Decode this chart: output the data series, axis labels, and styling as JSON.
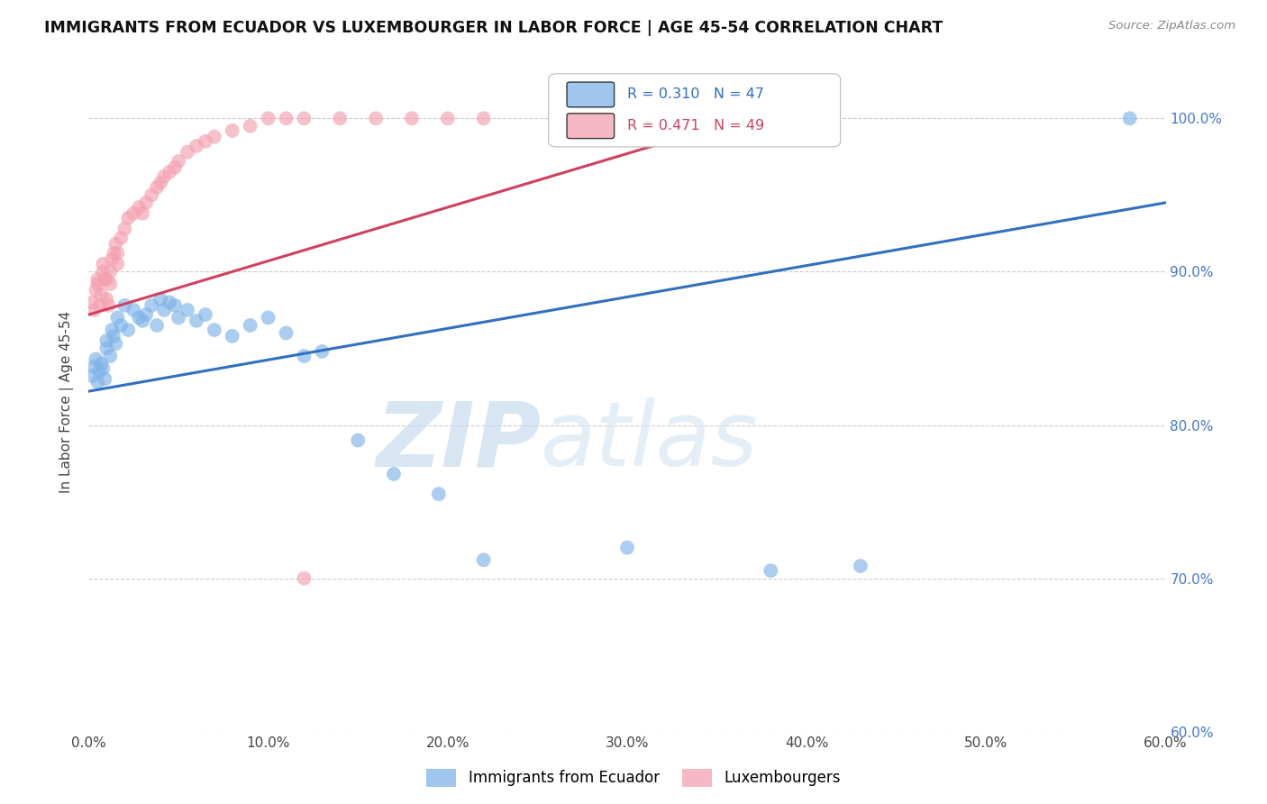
{
  "title": "IMMIGRANTS FROM ECUADOR VS LUXEMBOURGER IN LABOR FORCE | AGE 45-54 CORRELATION CHART",
  "source": "Source: ZipAtlas.com",
  "ylabel": "In Labor Force | Age 45-54",
  "xlim": [
    0.0,
    0.6
  ],
  "ylim": [
    0.6,
    1.03
  ],
  "xticks": [
    0.0,
    0.1,
    0.2,
    0.3,
    0.4,
    0.5,
    0.6
  ],
  "yticks": [
    0.6,
    0.7,
    0.8,
    0.9,
    1.0
  ],
  "xticklabels": [
    "0.0%",
    "10.0%",
    "20.0%",
    "30.0%",
    "40.0%",
    "50.0%",
    "60.0%"
  ],
  "yticklabels": [
    "60.0%",
    "70.0%",
    "80.0%",
    "90.0%",
    "100.0%"
  ],
  "blue_color": "#7FB3E8",
  "pink_color": "#F4A0B0",
  "blue_line_color": "#3070C0",
  "pink_line_color": "#D04060",
  "right_tick_color": "#4477CC",
  "R_blue": 0.31,
  "N_blue": 47,
  "R_pink": 0.471,
  "N_pink": 49,
  "legend_label_blue": "Immigrants from Ecuador",
  "legend_label_pink": "Luxembourgers",
  "watermark_zip": "ZIP",
  "watermark_atlas": "atlas",
  "blue_scatter_x": [
    0.002,
    0.003,
    0.004,
    0.005,
    0.006,
    0.007,
    0.008,
    0.009,
    0.01,
    0.01,
    0.012,
    0.013,
    0.014,
    0.015,
    0.016,
    0.018,
    0.02,
    0.022,
    0.025,
    0.028,
    0.03,
    0.032,
    0.035,
    0.038,
    0.04,
    0.042,
    0.045,
    0.048,
    0.05,
    0.055,
    0.06,
    0.065,
    0.07,
    0.08,
    0.09,
    0.1,
    0.11,
    0.12,
    0.13,
    0.15,
    0.17,
    0.195,
    0.22,
    0.3,
    0.38,
    0.43,
    0.58
  ],
  "blue_scatter_y": [
    0.832,
    0.838,
    0.843,
    0.828,
    0.835,
    0.84,
    0.837,
    0.83,
    0.85,
    0.855,
    0.845,
    0.862,
    0.858,
    0.853,
    0.87,
    0.865,
    0.878,
    0.862,
    0.875,
    0.87,
    0.868,
    0.872,
    0.878,
    0.865,
    0.882,
    0.875,
    0.88,
    0.878,
    0.87,
    0.875,
    0.868,
    0.872,
    0.862,
    0.858,
    0.865,
    0.87,
    0.86,
    0.845,
    0.848,
    0.79,
    0.768,
    0.755,
    0.712,
    0.72,
    0.705,
    0.708,
    1.0
  ],
  "pink_scatter_x": [
    0.002,
    0.003,
    0.004,
    0.005,
    0.005,
    0.006,
    0.007,
    0.008,
    0.008,
    0.009,
    0.01,
    0.01,
    0.011,
    0.012,
    0.012,
    0.013,
    0.014,
    0.015,
    0.016,
    0.016,
    0.018,
    0.02,
    0.022,
    0.025,
    0.028,
    0.03,
    0.032,
    0.035,
    0.038,
    0.04,
    0.042,
    0.045,
    0.048,
    0.05,
    0.055,
    0.06,
    0.065,
    0.07,
    0.08,
    0.09,
    0.1,
    0.11,
    0.12,
    0.14,
    0.16,
    0.18,
    0.2,
    0.22,
    0.12
  ],
  "pink_scatter_y": [
    0.88,
    0.875,
    0.888,
    0.892,
    0.895,
    0.878,
    0.885,
    0.9,
    0.905,
    0.895,
    0.882,
    0.895,
    0.878,
    0.892,
    0.9,
    0.908,
    0.912,
    0.918,
    0.905,
    0.912,
    0.922,
    0.928,
    0.935,
    0.938,
    0.942,
    0.938,
    0.945,
    0.95,
    0.955,
    0.958,
    0.962,
    0.965,
    0.968,
    0.972,
    0.978,
    0.982,
    0.985,
    0.988,
    0.992,
    0.995,
    1.0,
    1.0,
    1.0,
    1.0,
    1.0,
    1.0,
    1.0,
    1.0,
    0.7
  ],
  "blue_trend_x": [
    0.0,
    0.6
  ],
  "blue_trend_y": [
    0.822,
    0.945
  ],
  "pink_trend_x": [
    0.0,
    0.38
  ],
  "pink_trend_y": [
    0.872,
    1.005
  ]
}
